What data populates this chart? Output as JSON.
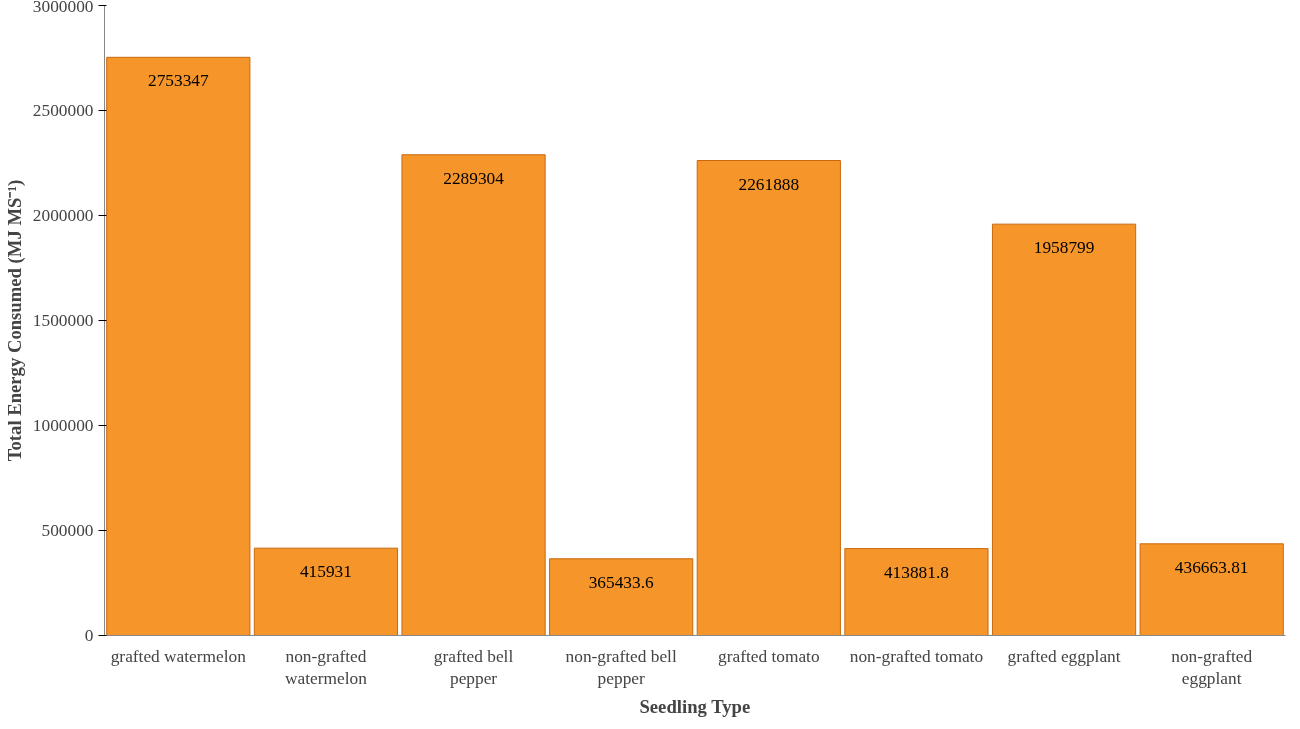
{
  "chart_data": {
    "type": "bar",
    "xlabel": "Seedling Type",
    "ylabel": "Total Energy Consumed (MJ MS⁻¹)",
    "categories": [
      "grafted watermelon",
      "non-grafted watermelon",
      "grafted bell pepper",
      "non-grafted bell pepper",
      "grafted tomato",
      "non-grafted tomato",
      "grafted eggplant",
      "non-grafted eggplant"
    ],
    "values": [
      2753347,
      415931,
      2289304,
      365433.6,
      2261888,
      413881.8,
      1958799,
      436663.81
    ],
    "color": "#f5952a",
    "data_labels": true,
    "grid": false,
    "ylim": [
      0,
      3000000
    ],
    "yticks": [
      0,
      500000,
      1000000,
      1500000,
      2000000,
      2500000,
      3000000
    ]
  }
}
